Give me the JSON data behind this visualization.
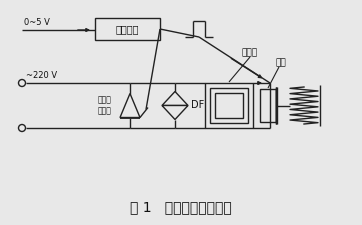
{
  "title": "图 1   电振机控制原理图",
  "title_fontsize": 10,
  "bg_color": "#e8e8e8",
  "line_color": "#222222",
  "text_color": "#111111",
  "label_trigger": "触发电路",
  "label_v_in": "0~5 V",
  "label_v_ac": "~220 V",
  "label_scr": "可控硅\n晶闸管",
  "label_df": "DF",
  "label_em": "电磁铁",
  "label_ar": "衔铁",
  "figsize": [
    3.62,
    2.25
  ],
  "dpi": 100
}
